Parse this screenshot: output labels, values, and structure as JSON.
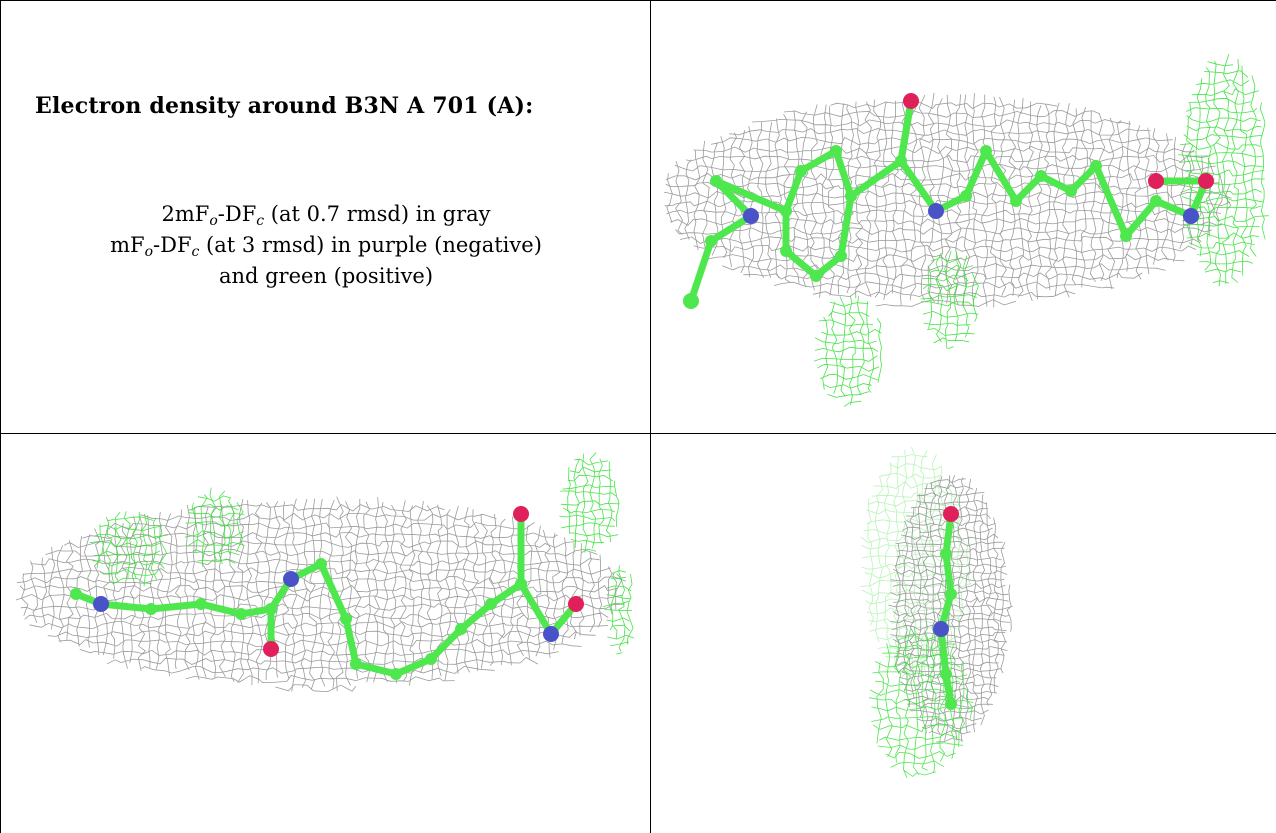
{
  "caption": {
    "title": "Electron density around B3N A 701 (A):",
    "map_2fofc": {
      "prefix": "2mF",
      "sub1": "o",
      "mid": "-DF",
      "sub2": "c",
      "suffix": " (at 0.7 rmsd) in gray"
    },
    "map_fofc": {
      "prefix": "mF",
      "sub1": "o",
      "mid": "-DF",
      "sub2": "c",
      "suffix": " (at 3 rmsd) in purple (negative)"
    },
    "map_fofc_tail": "and green (positive)"
  },
  "colors": {
    "mesh_gray": "#8a8a8a",
    "mesh_green": "#33e033",
    "carbon": "#4ee84e",
    "nitrogen": "#4a52c8",
    "oxygen": "#e0205a",
    "grid_line": "#000000"
  },
  "panels": [
    {
      "name": "view-1"
    },
    {
      "name": "view-2"
    },
    {
      "name": "view-3"
    }
  ]
}
